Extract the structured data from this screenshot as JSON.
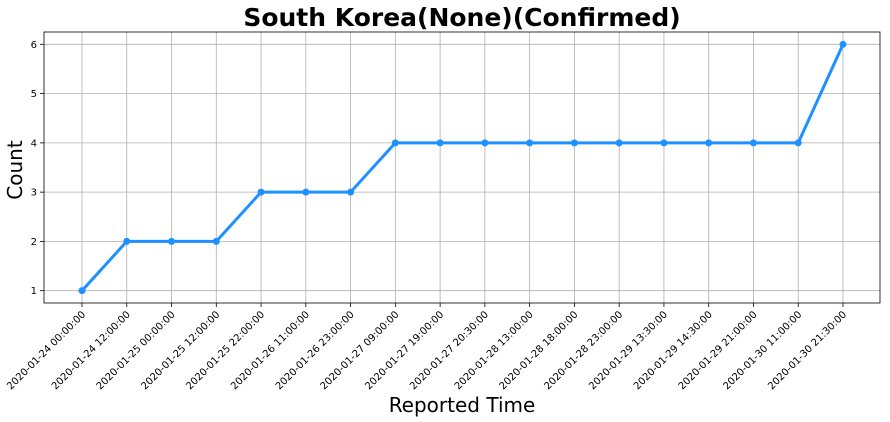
{
  "chart_data": {
    "type": "line",
    "title": "South Korea(None)(Confirmed)",
    "xlabel": "Reported Time",
    "ylabel": "Count",
    "grid": true,
    "color": "#1e90ff",
    "categories": [
      "2020-01-24 00:00:00",
      "2020-01-24 12:00:00",
      "2020-01-25 00:00:00",
      "2020-01-25 12:00:00",
      "2020-01-25 22:00:00",
      "2020-01-26 11:00:00",
      "2020-01-26 23:00:00",
      "2020-01-27 09:00:00",
      "2020-01-27 19:00:00",
      "2020-01-27 20:30:00",
      "2020-01-28 13:00:00",
      "2020-01-28 18:00:00",
      "2020-01-28 23:00:00",
      "2020-01-29 13:30:00",
      "2020-01-29 14:30:00",
      "2020-01-29 21:00:00",
      "2020-01-30 11:00:00",
      "2020-01-30 21:30:00"
    ],
    "values": [
      1,
      2,
      2,
      2,
      3,
      3,
      3,
      4,
      4,
      4,
      4,
      4,
      4,
      4,
      4,
      4,
      4,
      6
    ],
    "yticks": [
      1,
      2,
      3,
      4,
      5,
      6
    ],
    "ylim": [
      0.75,
      6.25
    ]
  }
}
